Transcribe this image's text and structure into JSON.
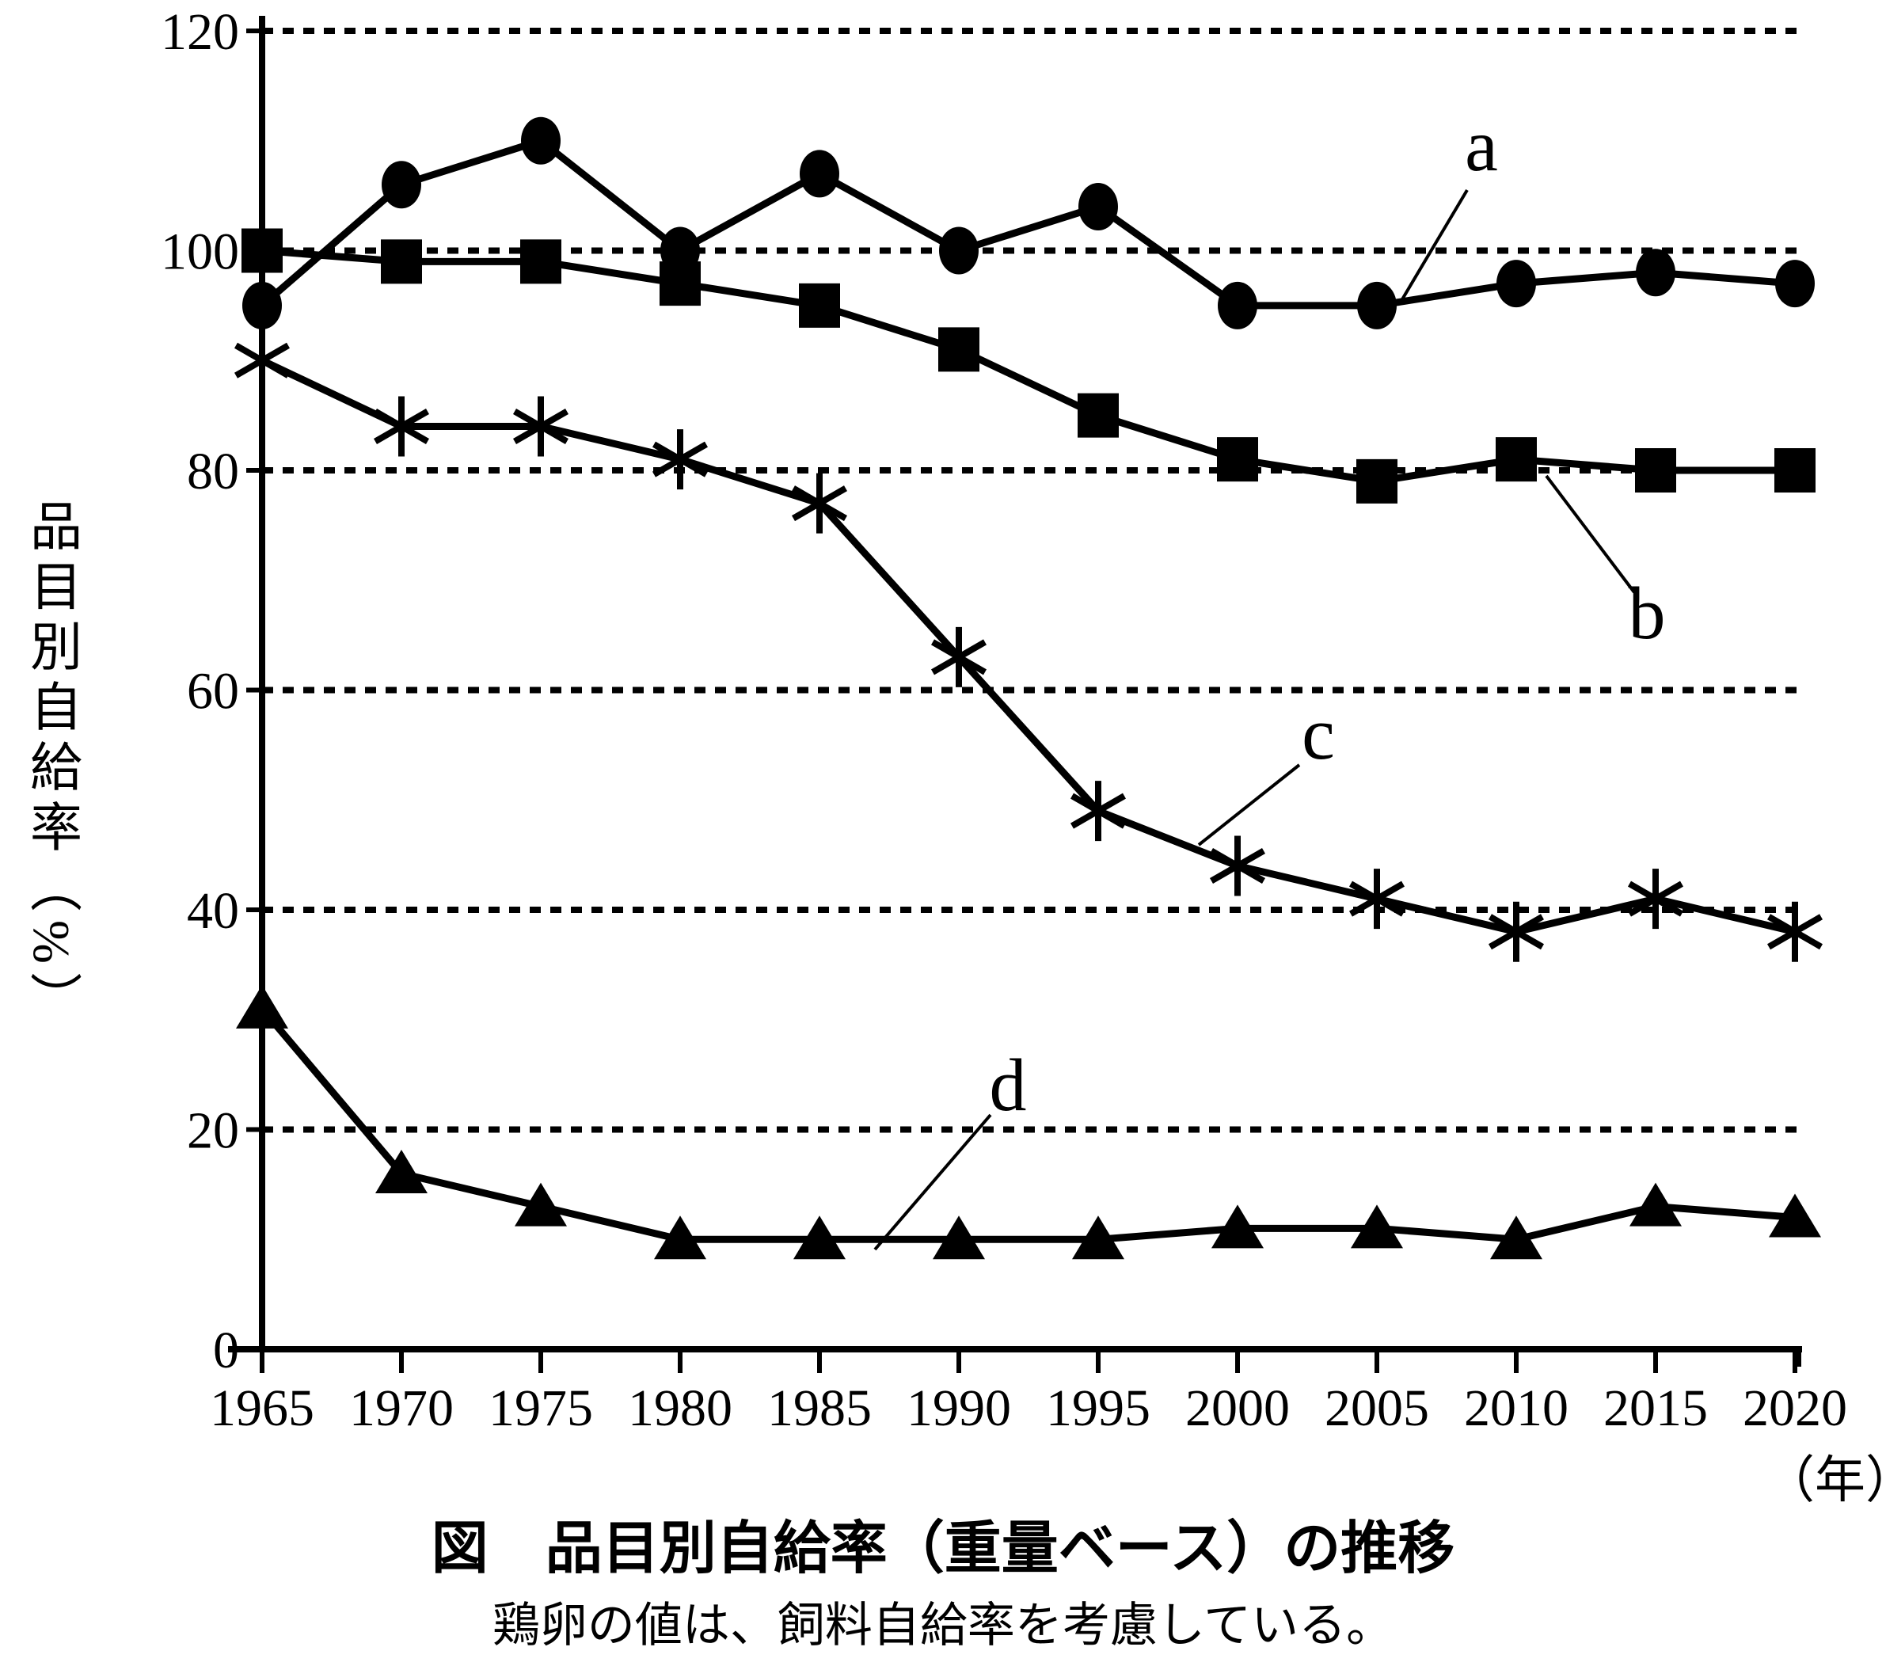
{
  "chart_data": {
    "type": "line",
    "title": "図　品目別自給率（重量ベース）の推移",
    "subtitle": "鶏卵の値は、飼料自給率を考慮している。",
    "ylabel": "品目別自給率（%）",
    "xlabel": "（年）",
    "x": [
      1965,
      1970,
      1975,
      1980,
      1985,
      1990,
      1995,
      2000,
      2005,
      2010,
      2015,
      2020
    ],
    "ylim": [
      0,
      120
    ],
    "y_ticks": [
      0,
      20,
      40,
      60,
      80,
      100,
      120
    ],
    "grid": "horizontal-dotted",
    "legend_position": "none",
    "line_color": "#000000",
    "background_color": "#ffffff",
    "series": [
      {
        "name": "a",
        "marker": "circle",
        "values": [
          95,
          106,
          110,
          100,
          107,
          100,
          104,
          95,
          95,
          97,
          98,
          97
        ]
      },
      {
        "name": "b",
        "marker": "square",
        "values": [
          100,
          99,
          99,
          97,
          95,
          91,
          85,
          81,
          79,
          81,
          80,
          80
        ]
      },
      {
        "name": "c",
        "marker": "asterisk",
        "values": [
          90,
          84,
          84,
          81,
          77,
          63,
          49,
          44,
          41,
          38,
          41,
          38
        ]
      },
      {
        "name": "d",
        "marker": "triangle",
        "values": [
          31,
          16,
          13,
          10,
          10,
          10,
          10,
          11,
          11,
          10,
          13,
          12
        ]
      }
    ]
  }
}
